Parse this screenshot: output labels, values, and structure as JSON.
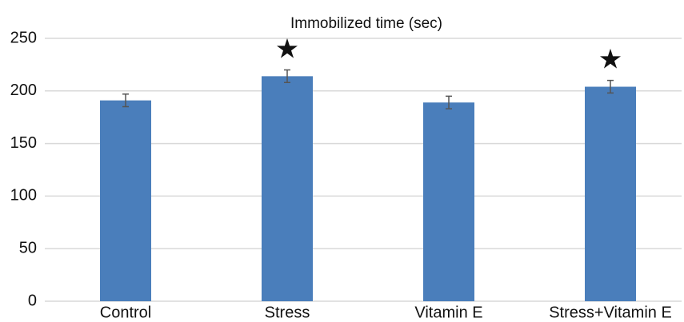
{
  "chart_data": {
    "type": "bar",
    "title": "Immobilized time (sec)",
    "categories": [
      "Control",
      "Stress",
      "Vitamin E",
      "Stress+Vitamin E"
    ],
    "values": [
      191,
      214,
      189,
      204
    ],
    "errors": [
      6,
      6,
      6,
      6
    ],
    "markers": [
      null,
      "★",
      null,
      "★"
    ],
    "color": "#4a7ebb",
    "ylim": [
      0,
      250
    ],
    "yticks": [
      0,
      50,
      100,
      150,
      200,
      250
    ],
    "grid": true
  }
}
